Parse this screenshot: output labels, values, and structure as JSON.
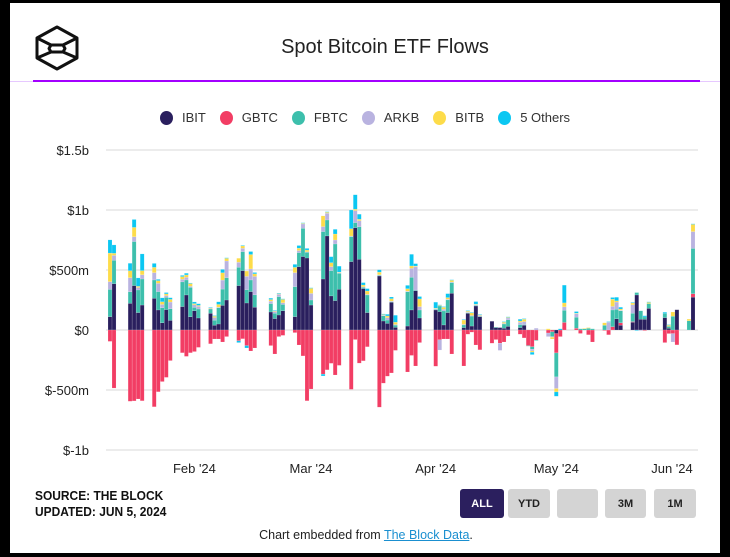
{
  "header": {
    "title": "Spot Bitcoin ETF Flows",
    "logo": "The Block"
  },
  "legend": [
    {
      "label": "IBIT",
      "color": "#2a1f5e"
    },
    {
      "label": "GBTC",
      "color": "#f23d64"
    },
    {
      "label": "FBTC",
      "color": "#3dbfac"
    },
    {
      "label": "ARKB",
      "color": "#b9b3e0"
    },
    {
      "label": "BITB",
      "color": "#fddc4a"
    },
    {
      "label": "5 Others",
      "color": "#0bc7f2"
    }
  ],
  "source": {
    "line1": "SOURCE: THE BLOCK",
    "line2": "UPDATED: JUN 5, 2024"
  },
  "range_buttons": [
    {
      "label": "ALL",
      "active": true
    },
    {
      "label": "YTD",
      "active": false
    },
    {
      "label": "",
      "active": false
    },
    {
      "label": "3M",
      "active": false
    },
    {
      "label": "1M",
      "active": false
    }
  ],
  "footer": {
    "prefix": "Chart embedded from ",
    "link": "The Block Data",
    "suffix": "."
  },
  "chart_data": {
    "type": "bar",
    "stacked": true,
    "title": "Spot Bitcoin ETF Flows",
    "ylim": [
      -1000,
      1500
    ],
    "y_unit": "USD millions",
    "yticks": [
      {
        "value": 1500,
        "label": "$1.5b"
      },
      {
        "value": 1000,
        "label": "$1b"
      },
      {
        "value": 500,
        "label": "$500m"
      },
      {
        "value": 0,
        "label": "$0"
      },
      {
        "value": -500,
        "label": "$-500m"
      },
      {
        "value": -1000,
        "label": "$-1b"
      }
    ],
    "xticks": [
      {
        "date": "2024-02-01",
        "label": "Feb '24"
      },
      {
        "date": "2024-03-01",
        "label": "Mar '24"
      },
      {
        "date": "2024-04-01",
        "label": "Apr '24"
      },
      {
        "date": "2024-05-01",
        "label": "May '24"
      },
      {
        "date": "2024-06-01",
        "label": "Jun '24"
      }
    ],
    "xlim": [
      "2024-01-11",
      "2024-06-04"
    ],
    "grid": true,
    "legend_position": "top",
    "series_names": [
      "IBIT",
      "GBTC",
      "FBTC",
      "ARKB",
      "BITB",
      "5 Others"
    ],
    "rows": [
      [
        "2024-01-11",
        111,
        -95,
        227,
        65,
        238,
        110
      ],
      [
        "2024-01-12",
        386,
        -484,
        195,
        41,
        17,
        70
      ],
      [
        "2024-01-16",
        222,
        -594,
        97,
        117,
        58,
        62
      ],
      [
        "2024-01-17",
        370,
        -591,
        367,
        40,
        78,
        66
      ],
      [
        "2024-01-18",
        145,
        -575,
        189,
        20,
        10,
        70
      ],
      [
        "2024-01-19",
        208,
        -590,
        217,
        35,
        35,
        139
      ],
      [
        "2024-01-22",
        264,
        -640,
        153,
        61,
        44,
        33
      ],
      [
        "2024-01-23",
        167,
        -515,
        153,
        69,
        22,
        11
      ],
      [
        "2024-01-24",
        60,
        -430,
        125,
        28,
        22,
        33
      ],
      [
        "2024-01-25",
        170,
        -395,
        103,
        14,
        14,
        11
      ],
      [
        "2024-01-26",
        80,
        -255,
        97,
        56,
        22,
        14
      ],
      [
        "2024-01-29",
        195,
        -190,
        206,
        22,
        22,
        10
      ],
      [
        "2024-01-30",
        292,
        -220,
        125,
        22,
        20,
        14
      ],
      [
        "2024-01-31",
        110,
        -190,
        245,
        10,
        22,
        5
      ],
      [
        "2024-02-01",
        160,
        -180,
        28,
        22,
        10,
        14
      ],
      [
        "2024-02-02",
        100,
        -145,
        75,
        22,
        8,
        14
      ],
      [
        "2024-02-05",
        139,
        -115,
        36,
        5,
        5,
        5
      ],
      [
        "2024-02-06",
        40,
        -75,
        42,
        22,
        11,
        5
      ],
      [
        "2024-02-07",
        50,
        -75,
        136,
        5,
        22,
        22
      ],
      [
        "2024-02-08",
        205,
        -100,
        136,
        75,
        61,
        28
      ],
      [
        "2024-02-09",
        250,
        -55,
        186,
        139,
        22,
        5
      ],
      [
        "2024-02-12",
        370,
        -90,
        153,
        42,
        33,
        -15
      ],
      [
        "2024-02-13",
        495,
        -73,
        158,
        28,
        20,
        5
      ],
      [
        "2024-02-14",
        225,
        -130,
        111,
        111,
        44,
        -20
      ],
      [
        "2024-02-15",
        320,
        -175,
        97,
        92,
        120,
        25
      ],
      [
        "2024-02-16",
        190,
        -150,
        103,
        153,
        22,
        11
      ],
      [
        "2024-02-20",
        150,
        -130,
        70,
        20,
        14,
        11
      ],
      [
        "2024-02-21",
        95,
        -200,
        45,
        14,
        5,
        5
      ],
      [
        "2024-02-22",
        125,
        -55,
        153,
        20,
        5,
        5
      ],
      [
        "2024-02-23",
        160,
        -45,
        53,
        14,
        28,
        5
      ],
      [
        "2024-02-26",
        111,
        -22,
        250,
        117,
        44,
        25
      ],
      [
        "2024-02-27",
        528,
        -125,
        117,
        17,
        20,
        22
      ],
      [
        "2024-02-28",
        612,
        -216,
        236,
        36,
        5,
        5
      ],
      [
        "2024-02-29",
        600,
        -590,
        47,
        5,
        14,
        14
      ],
      [
        "2024-03-01",
        208,
        -492,
        42,
        55,
        42,
        5
      ],
      [
        "2024-03-04",
        425,
        -368,
        395,
        42,
        89,
        -15
      ],
      [
        "2024-03-05",
        784,
        -332,
        133,
        56,
        8,
        5
      ],
      [
        "2024-03-06",
        284,
        -278,
        211,
        33,
        33,
        50
      ],
      [
        "2024-03-07",
        245,
        -375,
        472,
        33,
        50,
        39
      ],
      [
        "2024-03-08",
        339,
        -295,
        133,
        5,
        5,
        50
      ],
      [
        "2024-03-11",
        570,
        -495,
        208,
        5,
        61,
        156
      ],
      [
        "2024-03-12",
        853,
        -80,
        42,
        100,
        12,
        120
      ],
      [
        "2024-03-13",
        589,
        -276,
        272,
        50,
        12,
        42
      ],
      [
        "2024-03-14",
        345,
        -257,
        10,
        5,
        15,
        20
      ],
      [
        "2024-03-15",
        145,
        -140,
        147,
        5,
        28,
        20
      ],
      [
        "2024-03-18",
        450,
        -643,
        5,
        5,
        22,
        20
      ],
      [
        "2024-03-19",
        75,
        -443,
        44,
        5,
        5,
        5
      ],
      [
        "2024-03-20",
        55,
        -385,
        28,
        20,
        14,
        14
      ],
      [
        "2024-03-21",
        231,
        -358,
        5,
        5,
        20,
        14
      ],
      [
        "2024-03-22",
        22,
        -170,
        19,
        5,
        19,
        58
      ],
      [
        "2024-03-25",
        33,
        -350,
        286,
        5,
        20,
        28
      ],
      [
        "2024-03-26",
        167,
        -212,
        272,
        75,
        20,
        97
      ],
      [
        "2024-03-27",
        328,
        -300,
        5,
        195,
        5,
        20
      ],
      [
        "2024-03-28",
        100,
        -105,
        67,
        28,
        64,
        20
      ],
      [
        "2024-04-01",
        167,
        -302,
        5,
        5,
        5,
        50
      ],
      [
        "2024-04-02",
        153,
        -82,
        47,
        -85,
        5,
        5
      ],
      [
        "2024-04-03",
        42,
        -75,
        117,
        14,
        17,
        5
      ],
      [
        "2024-04-04",
        145,
        -75,
        106,
        5,
        14,
        33
      ],
      [
        "2024-04-05",
        306,
        -200,
        89,
        5,
        14,
        5
      ],
      [
        "2024-04-08",
        20,
        -300,
        22,
        5,
        36,
        5
      ],
      [
        "2024-04-09",
        139,
        -35,
        5,
        5,
        8,
        5
      ],
      [
        "2024-04-10",
        33,
        -18,
        83,
        5,
        22,
        5
      ],
      [
        "2024-04-11",
        200,
        -125,
        5,
        5,
        5,
        22
      ],
      [
        "2024-04-12",
        111,
        -165,
        5,
        5,
        5,
        5
      ],
      [
        "2024-04-15",
        73,
        -110,
        0,
        0,
        0,
        0
      ],
      [
        "2024-04-16",
        20,
        -80,
        5,
        0,
        0,
        0
      ],
      [
        "2024-04-17",
        20,
        -110,
        0,
        -60,
        0,
        0
      ],
      [
        "2024-04-18",
        15,
        -100,
        35,
        5,
        10,
        5
      ],
      [
        "2024-04-19",
        30,
        -50,
        55,
        15,
        5,
        5
      ],
      [
        "2024-04-22",
        20,
        -35,
        25,
        20,
        10,
        15
      ],
      [
        "2024-04-23",
        40,
        -66,
        5,
        25,
        20,
        5
      ],
      [
        "2024-04-24",
        0,
        -130,
        -5,
        0,
        0,
        0
      ],
      [
        "2024-04-25",
        0,
        -140,
        -20,
        -15,
        -10,
        -20
      ],
      [
        "2024-04-26",
        0,
        -85,
        -5,
        15,
        0,
        0
      ],
      [
        "2024-04-29",
        0,
        -25,
        0,
        -30,
        10,
        0
      ],
      [
        "2024-04-30",
        0,
        -15,
        -40,
        -5,
        -15,
        0
      ],
      [
        "2024-05-01",
        -30,
        -161,
        -200,
        -97,
        -28,
        -36
      ],
      [
        "2024-05-02",
        0,
        -55,
        0,
        0,
        0,
        10
      ],
      [
        "2024-05-03",
        0,
        63,
        102,
        28,
        33,
        148
      ],
      [
        "2024-05-06",
        0,
        15,
        92,
        28,
        5,
        14
      ],
      [
        "2024-05-07",
        0,
        -29,
        10,
        0,
        0,
        0
      ],
      [
        "2024-05-08",
        0,
        0,
        10,
        0,
        5,
        0
      ],
      [
        "2024-05-09",
        0,
        -40,
        15,
        0,
        5,
        0
      ],
      [
        "2024-05-10",
        0,
        -100,
        10,
        0,
        0,
        0
      ],
      [
        "2024-05-13",
        0,
        -5,
        40,
        0,
        20,
        0
      ],
      [
        "2024-05-14",
        0,
        -40,
        0,
        65,
        0,
        5
      ],
      [
        "2024-05-15",
        0,
        27,
        140,
        30,
        60,
        14
      ],
      [
        "2024-05-16",
        93,
        0,
        80,
        60,
        10,
        30
      ],
      [
        "2024-05-17",
        40,
        20,
        100,
        5,
        10,
        15
      ],
      [
        "2024-05-20",
        65,
        5,
        70,
        70,
        15,
        5
      ],
      [
        "2024-05-21",
        292,
        0,
        20,
        0,
        0,
        -5
      ],
      [
        "2024-05-22",
        90,
        0,
        70,
        -5,
        0,
        0
      ],
      [
        "2024-05-23",
        89,
        -5,
        20,
        0,
        0,
        10
      ],
      [
        "2024-05-24",
        180,
        0,
        40,
        0,
        10,
        5
      ],
      [
        "2024-05-28",
        103,
        -105,
        35,
        0,
        0,
        10
      ],
      [
        "2024-05-29",
        15,
        -30,
        15,
        0,
        10,
        5
      ],
      [
        "2024-05-30",
        0,
        -30,
        115,
        -70,
        35,
        0
      ],
      [
        "2024-05-31",
        169,
        -124,
        0,
        0,
        0,
        0
      ],
      [
        "2024-06-03",
        0,
        0,
        77,
        0,
        14,
        0
      ],
      [
        "2024-06-04",
        274,
        28,
        378,
        140,
        60,
        5
      ]
    ]
  }
}
